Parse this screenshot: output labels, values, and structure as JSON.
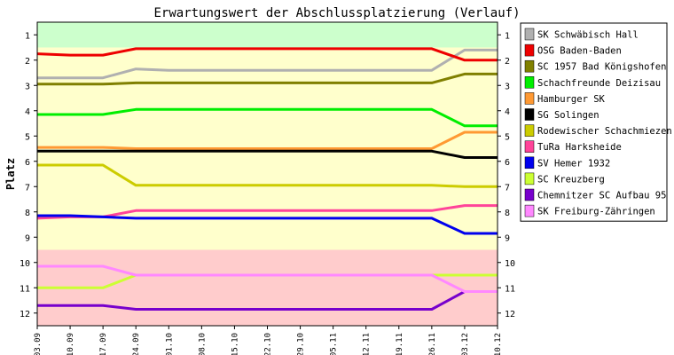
{
  "chart_data": {
    "type": "line",
    "title": "Erwartungswert der Abschlussplatzierung (Verlauf)",
    "xlabel": "",
    "ylabel": "Platz",
    "y_ticks": [
      "1",
      "2",
      "3",
      "4",
      "5",
      "6",
      "7",
      "8",
      "9",
      "10",
      "11",
      "12"
    ],
    "ylim": [
      0.5,
      12.5
    ],
    "y_inverted": true,
    "x": [
      "03.09",
      "10.09",
      "17.09",
      "24.09",
      "01.10",
      "08.10",
      "15.10",
      "22.10",
      "29.10",
      "05.11",
      "12.11",
      "19.11",
      "26.11",
      "03.12",
      "10.12"
    ],
    "bands": [
      {
        "from": 0.5,
        "to": 1.5,
        "color": "#ccffcc"
      },
      {
        "from": 1.5,
        "to": 9.5,
        "color": "#ffffcc"
      },
      {
        "from": 9.5,
        "to": 12.5,
        "color": "#ffcccc"
      }
    ],
    "legend_position": "right",
    "series": [
      {
        "name": "SK Schwäbisch Hall",
        "color": "#b0b0b0",
        "values": [
          2.7,
          2.7,
          2.7,
          2.35,
          2.4,
          2.4,
          2.4,
          2.4,
          2.4,
          2.4,
          2.4,
          2.4,
          2.4,
          1.6,
          1.6
        ]
      },
      {
        "name": "OSG Baden-Baden",
        "color": "#ee0000",
        "values": [
          1.75,
          1.8,
          1.8,
          1.55,
          1.55,
          1.55,
          1.55,
          1.55,
          1.55,
          1.55,
          1.55,
          1.55,
          1.55,
          2.0,
          2.0
        ]
      },
      {
        "name": "SC 1957 Bad Königshofen",
        "color": "#808000",
        "values": [
          2.95,
          2.95,
          2.95,
          2.9,
          2.9,
          2.9,
          2.9,
          2.9,
          2.9,
          2.9,
          2.9,
          2.9,
          2.9,
          2.55,
          2.55
        ]
      },
      {
        "name": "Schachfreunde Deizisau",
        "color": "#00ee00",
        "values": [
          4.15,
          4.15,
          4.15,
          3.95,
          3.95,
          3.95,
          3.95,
          3.95,
          3.95,
          3.95,
          3.95,
          3.95,
          3.95,
          4.6,
          4.6
        ]
      },
      {
        "name": "Hamburger SK",
        "color": "#ff9933",
        "values": [
          5.45,
          5.45,
          5.45,
          5.5,
          5.5,
          5.5,
          5.5,
          5.5,
          5.5,
          5.5,
          5.5,
          5.5,
          5.5,
          4.85,
          4.85
        ]
      },
      {
        "name": "SG Solingen",
        "color": "#000000",
        "values": [
          5.6,
          5.6,
          5.6,
          5.6,
          5.6,
          5.6,
          5.6,
          5.6,
          5.6,
          5.6,
          5.6,
          5.6,
          5.6,
          5.85,
          5.85
        ]
      },
      {
        "name": "Rodewischer Schachmiezen",
        "color": "#cccc00",
        "values": [
          6.15,
          6.15,
          6.15,
          6.95,
          6.95,
          6.95,
          6.95,
          6.95,
          6.95,
          6.95,
          6.95,
          6.95,
          6.95,
          7.0,
          7.0
        ]
      },
      {
        "name": "TuRa Harksheide",
        "color": "#ff4499",
        "values": [
          8.25,
          8.2,
          8.2,
          7.95,
          7.95,
          7.95,
          7.95,
          7.95,
          7.95,
          7.95,
          7.95,
          7.95,
          7.95,
          7.75,
          7.75
        ]
      },
      {
        "name": "SV Hemer 1932",
        "color": "#0000ee",
        "values": [
          8.15,
          8.15,
          8.2,
          8.25,
          8.25,
          8.25,
          8.25,
          8.25,
          8.25,
          8.25,
          8.25,
          8.25,
          8.25,
          8.85,
          8.85
        ]
      },
      {
        "name": "SC Kreuzberg",
        "color": "#ccff33",
        "values": [
          11.0,
          11.0,
          11.0,
          10.5,
          10.5,
          10.5,
          10.5,
          10.5,
          10.5,
          10.5,
          10.5,
          10.5,
          10.5,
          10.5,
          10.5
        ]
      },
      {
        "name": "Chemnitzer SC Aufbau 95",
        "color": "#7700cc",
        "values": [
          11.7,
          11.7,
          11.7,
          11.85,
          11.85,
          11.85,
          11.85,
          11.85,
          11.85,
          11.85,
          11.85,
          11.85,
          11.85,
          11.15,
          11.15
        ]
      },
      {
        "name": "SK Freiburg-Zähringen",
        "color": "#ff88ff",
        "values": [
          10.15,
          10.15,
          10.15,
          10.5,
          10.5,
          10.5,
          10.5,
          10.5,
          10.5,
          10.5,
          10.5,
          10.5,
          10.5,
          11.15,
          11.15
        ]
      }
    ]
  }
}
